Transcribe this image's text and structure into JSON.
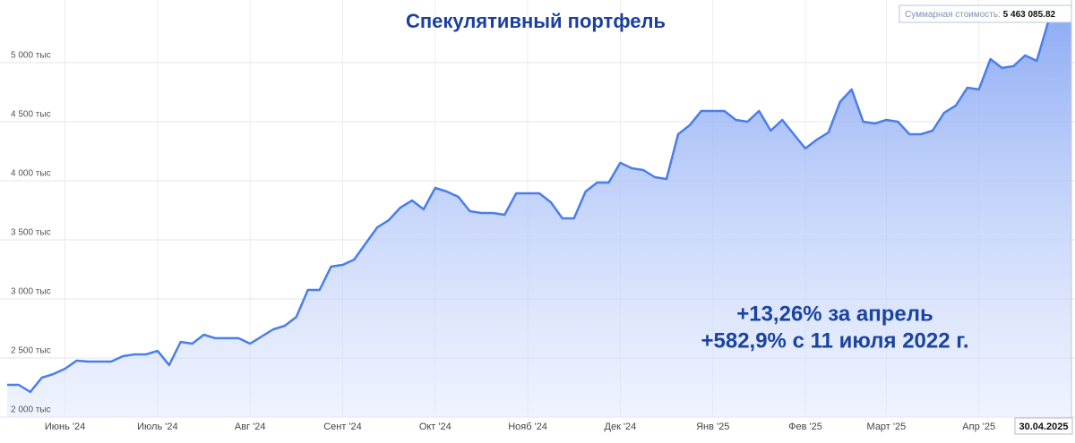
{
  "chart_data": {
    "type": "area",
    "title": "Спекулятивный портфель",
    "annotations": [
      "+13,26% за апрель",
      "+582,9% с 11 июля 2022 г."
    ],
    "tooltip": {
      "label": "Суммарная стоимость:",
      "value": "5 463 085.82"
    },
    "crosshair_label": "30.04.2025",
    "categories": [
      null,
      null,
      null,
      null,
      null,
      "Июнь '24",
      null,
      null,
      null,
      null,
      null,
      null,
      null,
      "Июль '24",
      null,
      null,
      null,
      null,
      null,
      null,
      null,
      "Авг '24",
      null,
      null,
      null,
      null,
      null,
      null,
      null,
      "Сент '24",
      null,
      null,
      null,
      null,
      null,
      null,
      null,
      "Окт '24",
      null,
      null,
      null,
      null,
      null,
      null,
      null,
      "Нояб '24",
      null,
      null,
      null,
      null,
      null,
      null,
      null,
      "Дек '24",
      null,
      null,
      null,
      null,
      null,
      null,
      null,
      "Янв '25",
      null,
      null,
      null,
      null,
      null,
      null,
      null,
      "Фев '25",
      null,
      null,
      null,
      null,
      null,
      null,
      "Март '25",
      null,
      null,
      null,
      null,
      null,
      null,
      null,
      "Апр '25",
      null,
      null,
      null,
      null,
      null,
      null,
      null,
      null
    ],
    "series": [
      {
        "color": "#4a7ee8",
        "values": [
          2273,
          2273,
          2212,
          2333,
          2364,
          2409,
          2477,
          2470,
          2470,
          2470,
          2515,
          2530,
          2530,
          2560,
          2440,
          2636,
          2621,
          2697,
          2667,
          2667,
          2667,
          2621,
          2682,
          2742,
          2773,
          2848,
          3076,
          3076,
          3273,
          3288,
          3333,
          3470,
          3606,
          3667,
          3773,
          3833,
          3758,
          3939,
          3909,
          3864,
          3742,
          3727,
          3727,
          3712,
          3894,
          3894,
          3894,
          3818,
          3682,
          3682,
          3909,
          3985,
          3985,
          4152,
          4106,
          4091,
          4030,
          4015,
          4394,
          4470,
          4591,
          4591,
          4591,
          4515,
          4500,
          4591,
          4424,
          4515,
          4394,
          4273,
          4348,
          4409,
          4667,
          4773,
          4500,
          4485,
          4515,
          4500,
          4394,
          4394,
          4424,
          4576,
          4636,
          4788,
          4773,
          5030,
          4955,
          4970,
          5061,
          5015,
          5348,
          5348,
          5470
        ]
      }
    ],
    "ylim": [
      2000,
      5530
    ],
    "yticks": [
      {
        "value": 2000,
        "label": "2 000 тыс"
      },
      {
        "value": 2500,
        "label": "2 500 тыс"
      },
      {
        "value": 3000,
        "label": "3 000 тыс"
      },
      {
        "value": 3500,
        "label": "3 500 тыс"
      },
      {
        "value": 4000,
        "label": "4 000 тыс"
      },
      {
        "value": 4500,
        "label": "4 500 тыс"
      },
      {
        "value": 5000,
        "label": "5 000 тыс"
      }
    ],
    "grid": true
  }
}
